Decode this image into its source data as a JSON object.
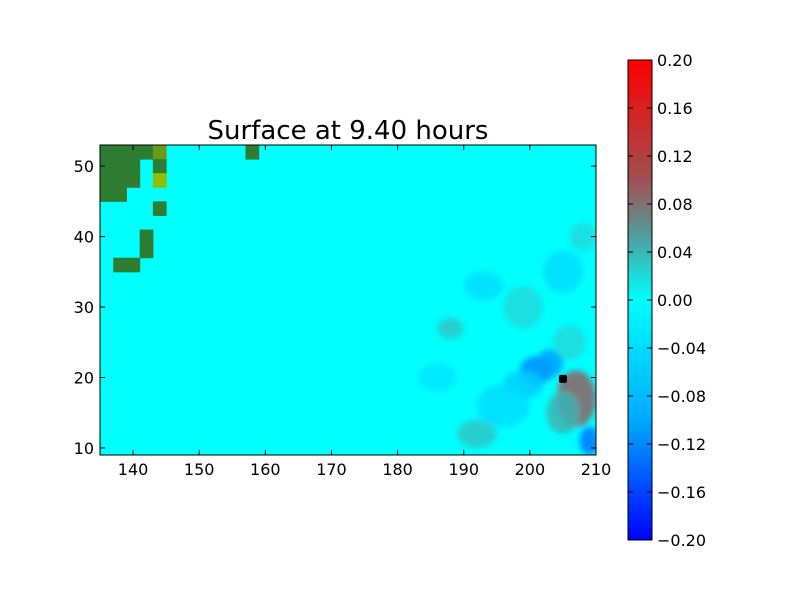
{
  "chart_data": {
    "type": "heatmap",
    "title": "Surface at 9.40 hours",
    "xlabel": "",
    "ylabel": "",
    "xlim": [
      135,
      210
    ],
    "ylim": [
      9,
      53
    ],
    "x_ticks": [
      140,
      150,
      160,
      170,
      180,
      190,
      200,
      210
    ],
    "y_ticks": [
      10,
      20,
      30,
      40,
      50
    ],
    "background_value": 0.0,
    "colorbar": {
      "label": "",
      "range": [
        -0.2,
        0.2
      ],
      "ticks": [
        "0.20",
        "0.16",
        "0.12",
        "0.08",
        "0.04",
        "0.00",
        "−0.04",
        "−0.08",
        "−0.12",
        "−0.16",
        "−0.20"
      ],
      "colors": {
        "min": "#0000ff",
        "mid_low": "#00aaff",
        "zero": "#00ffff",
        "mid_high": "#3cb4b4",
        "high": "#a05050",
        "max": "#ff0000"
      }
    },
    "land_cells": [
      {
        "x": 136,
        "y": 52
      },
      {
        "x": 138,
        "y": 52
      },
      {
        "x": 140,
        "y": 52
      },
      {
        "x": 142,
        "y": 52
      },
      {
        "x": 144,
        "y": 52,
        "tone": "olive"
      },
      {
        "x": 136,
        "y": 50
      },
      {
        "x": 138,
        "y": 50
      },
      {
        "x": 140,
        "y": 50
      },
      {
        "x": 144,
        "y": 50
      },
      {
        "x": 136,
        "y": 48
      },
      {
        "x": 138,
        "y": 48
      },
      {
        "x": 140,
        "y": 48
      },
      {
        "x": 144,
        "y": 48,
        "tone": "lime"
      },
      {
        "x": 136,
        "y": 46
      },
      {
        "x": 138,
        "y": 46
      },
      {
        "x": 144,
        "y": 44
      },
      {
        "x": 142,
        "y": 40
      },
      {
        "x": 142,
        "y": 38
      },
      {
        "x": 138,
        "y": 36
      },
      {
        "x": 140,
        "y": 36
      },
      {
        "x": 158,
        "y": 52
      }
    ],
    "anomalies": [
      {
        "x": 207,
        "y": 17,
        "value": 0.09,
        "rx": 3,
        "ry": 4
      },
      {
        "x": 209,
        "y": 11,
        "value": -0.1,
        "rx": 1.5,
        "ry": 2
      },
      {
        "x": 201,
        "y": 21,
        "value": -0.08,
        "rx": 2.5,
        "ry": 2
      },
      {
        "x": 203,
        "y": 22,
        "value": -0.06,
        "rx": 2,
        "ry": 2
      },
      {
        "x": 199,
        "y": 19,
        "value": -0.03,
        "rx": 3,
        "ry": 2
      },
      {
        "x": 205,
        "y": 15,
        "value": 0.04,
        "rx": 2.5,
        "ry": 3
      },
      {
        "x": 196,
        "y": 16,
        "value": -0.02,
        "rx": 4,
        "ry": 3
      },
      {
        "x": 192,
        "y": 12,
        "value": 0.03,
        "rx": 3,
        "ry": 2
      },
      {
        "x": 188,
        "y": 27,
        "value": 0.03,
        "rx": 2,
        "ry": 1.5
      },
      {
        "x": 193,
        "y": 33,
        "value": -0.02,
        "rx": 3,
        "ry": 2
      },
      {
        "x": 199,
        "y": 30,
        "value": 0.02,
        "rx": 3,
        "ry": 3
      },
      {
        "x": 205,
        "y": 35,
        "value": -0.02,
        "rx": 3,
        "ry": 3
      },
      {
        "x": 208,
        "y": 40,
        "value": 0.02,
        "rx": 2,
        "ry": 2
      },
      {
        "x": 206,
        "y": 25,
        "value": 0.02,
        "rx": 2.5,
        "ry": 2.5
      },
      {
        "x": 186,
        "y": 20,
        "value": -0.015,
        "rx": 3,
        "ry": 2
      }
    ],
    "markers": [
      {
        "x": 205,
        "y": 19.8,
        "color": "#000000"
      }
    ]
  }
}
